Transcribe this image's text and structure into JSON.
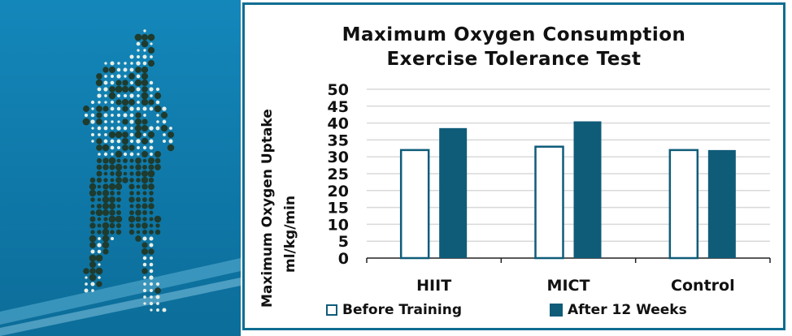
{
  "chart_data": {
    "type": "bar",
    "title": [
      "Maximum Oxygen Consumption",
      "Exercise Tolerance Test"
    ],
    "ylabel": [
      "Maximum Oxygen Uptake",
      "ml/kg/min"
    ],
    "xlabel": "",
    "categories": [
      "HIIT",
      "MICT",
      "Control"
    ],
    "series": [
      {
        "name": "Before Training",
        "values": [
          32,
          33,
          32
        ]
      },
      {
        "name": "After 12 Weeks",
        "values": [
          38.5,
          40.5,
          32
        ]
      }
    ],
    "ylim": [
      0,
      50
    ],
    "yticks": [
      0,
      5,
      10,
      15,
      20,
      25,
      30,
      35,
      40,
      45,
      50
    ],
    "grid": true,
    "legend": "bottom"
  },
  "colors": {
    "after_fill": "#0f5c79",
    "before_stroke": "#0f5c79",
    "grid": "#d9d9d9",
    "photo_bg": "#1487ba"
  }
}
